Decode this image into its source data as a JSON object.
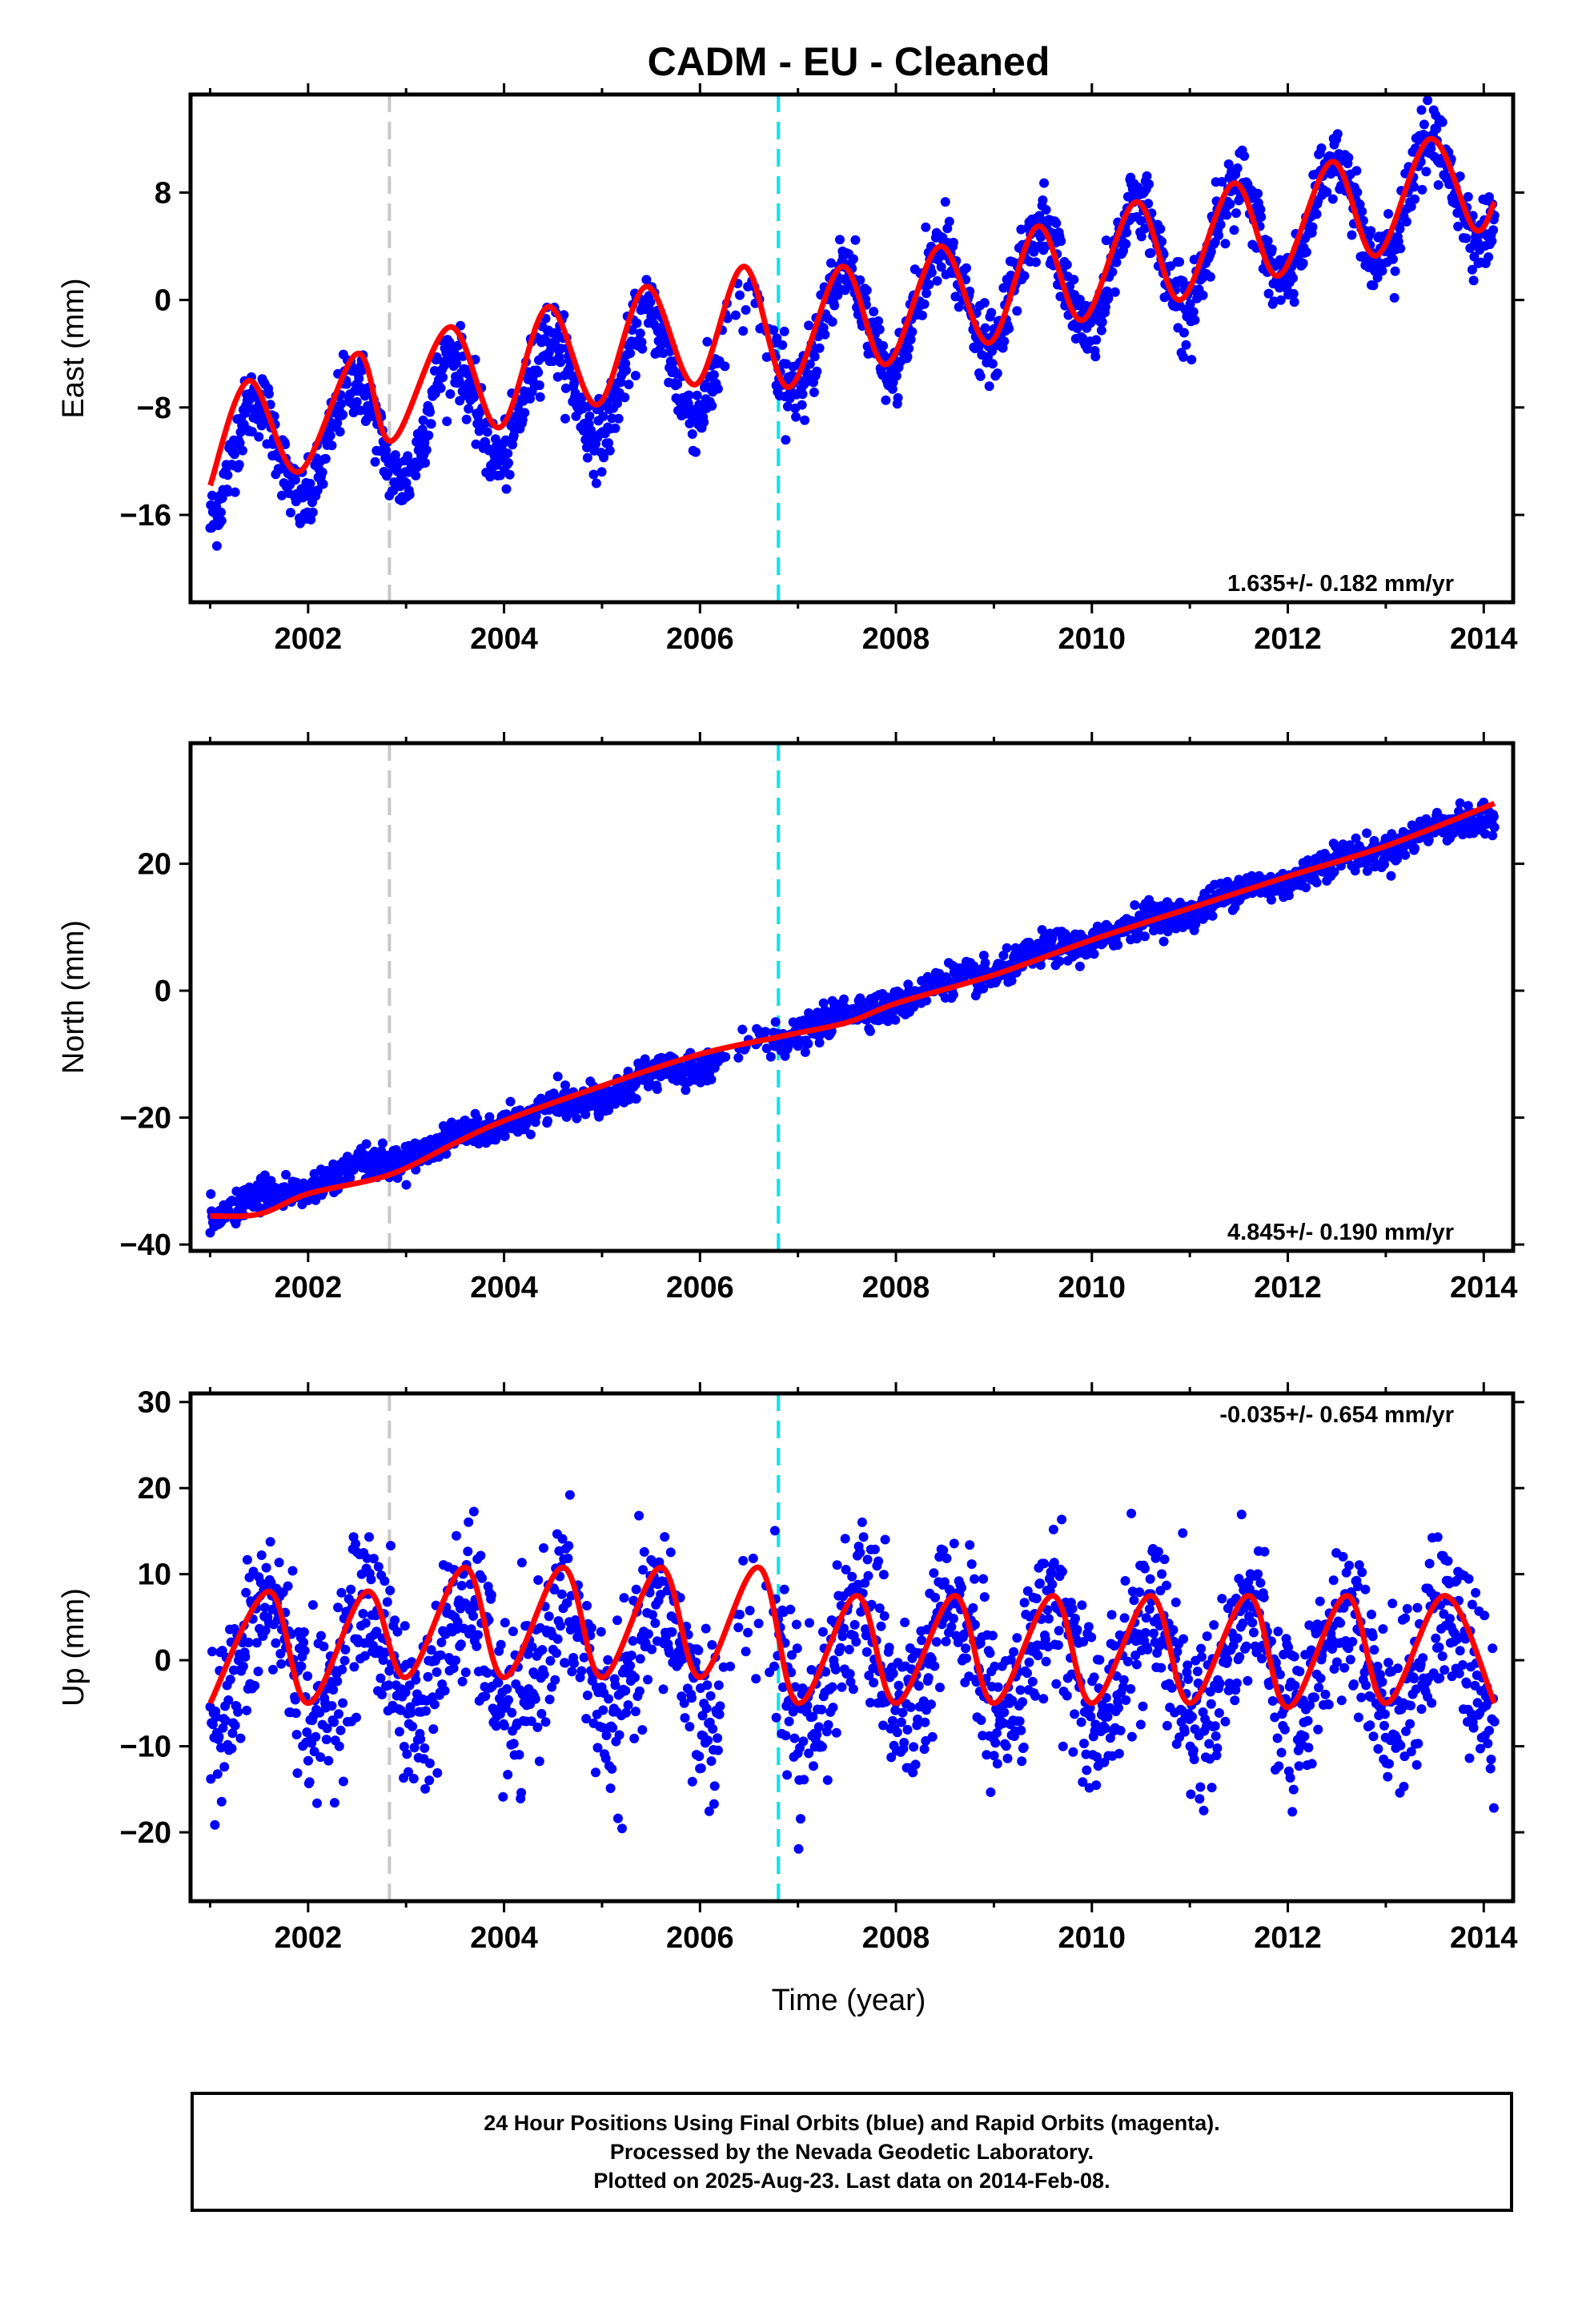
{
  "chart_data": {
    "title": "CADM  - EU - Cleaned",
    "type": "scatter",
    "xlabel": "Time (year)",
    "xlim": [
      2000.8,
      2014.3
    ],
    "x_ticks": [
      "2002",
      "2004",
      "2006",
      "2008",
      "2010",
      "2012",
      "2014"
    ],
    "vertical_lines": [
      {
        "x": 2002.83,
        "color": "#c8c8c8",
        "style": "dashed"
      },
      {
        "x": 2006.8,
        "color": "#00e5ee",
        "style": "dashed"
      }
    ],
    "colors": {
      "observations": "#0000ff",
      "model_fit": "#ff0000",
      "frame": "#000000"
    },
    "panels": [
      {
        "id": "east",
        "ylabel": "East (mm)",
        "ylim": [
          -22.5,
          15.3
        ],
        "y_ticks": [
          8,
          0,
          -8,
          -16
        ],
        "y_tick_labels": [
          "8",
          "0",
          "−8",
          "−16"
        ],
        "rate_label": "1.635+/- 0.182 mm/yr",
        "rate_position": "bottom-right",
        "series": [
          {
            "kind": "observations",
            "x_range": [
              2001.0,
              2014.11
            ],
            "trend_start": -12.5,
            "rate": 1.635,
            "seasonal_amplitude": 4.2,
            "seasonal_phase_year": 0.46,
            "noise": 1.3
          },
          {
            "kind": "model_fit",
            "x": [
              2001.0,
              2001.4,
              2001.9,
              2002.5,
              2002.85,
              2003.45,
              2003.95,
              2004.45,
              2004.95,
              2005.45,
              2005.95,
              2006.45,
              2006.9,
              2007.45,
              2007.9,
              2008.45,
              2008.95,
              2009.45,
              2009.9,
              2010.45,
              2010.9,
              2011.45,
              2011.9,
              2012.45,
              2012.9,
              2013.45,
              2013.9,
              2014.11
            ],
            "y": [
              -13.8,
              -6.0,
              -12.8,
              -4.0,
              -10.5,
              -2.0,
              -9.5,
              -0.5,
              -7.8,
              1.0,
              -6.3,
              2.5,
              -6.5,
              2.5,
              -4.8,
              4.0,
              -3.2,
              5.5,
              -1.5,
              7.3,
              0.0,
              8.7,
              1.8,
              10.3,
              3.3,
              12.0,
              5.3,
              7.3
            ]
          }
        ]
      },
      {
        "id": "north",
        "ylabel": "North (mm)",
        "ylim": [
          -41,
          39
        ],
        "y_ticks": [
          20,
          0,
          -20,
          -40
        ],
        "y_tick_labels": [
          "20",
          "0",
          "−20",
          "−40"
        ],
        "rate_label": "4.845+/- 0.190 mm/yr",
        "rate_position": "bottom-right",
        "series": [
          {
            "kind": "observations",
            "x_range": [
              2001.0,
              2014.11
            ],
            "trend_start": -35.5,
            "rate": 4.845,
            "seasonal_amplitude": 0.8,
            "seasonal_phase_year": 0.5,
            "noise": 1.2
          },
          {
            "kind": "model_fit",
            "x": [
              2001.0,
              2001.5,
              2002.0,
              2002.83,
              2003.5,
              2004.0,
              2005.0,
              2006.0,
              2006.8,
              2007.5,
              2008.0,
              2009.0,
              2010.0,
              2011.0,
              2012.0,
              2013.0,
              2014.11
            ],
            "y": [
              -35.5,
              -35.2,
              -32.0,
              -29.0,
              -24.0,
              -20.5,
              -15.0,
              -10.0,
              -7.3,
              -5.0,
              -2.0,
              2.5,
              8.0,
              13.0,
              18.0,
              22.8,
              29.5
            ]
          }
        ]
      },
      {
        "id": "up",
        "ylabel": "Up (mm)",
        "ylim": [
          -28,
          31
        ],
        "y_ticks": [
          30,
          20,
          10,
          0,
          -10,
          -20
        ],
        "y_tick_labels": [
          "30",
          "20",
          "10",
          "0",
          "−10",
          "−20"
        ],
        "rate_label": "-0.035+/- 0.654 mm/yr",
        "rate_position": "top-right",
        "series": [
          {
            "kind": "observations",
            "x_range": [
              2001.0,
              2014.11
            ],
            "trend_start": 0.0,
            "rate": -0.035,
            "seasonal_amplitude": 6.5,
            "seasonal_phase_year": 0.6,
            "noise": 4.8
          },
          {
            "kind": "model_fit",
            "x": [
              2001.0,
              2001.6,
              2002.0,
              2002.6,
              2003.0,
              2003.6,
              2004.0,
              2004.6,
              2005.0,
              2005.6,
              2006.0,
              2006.6,
              2007.0,
              2007.6,
              2008.0,
              2008.6,
              2009.0,
              2009.6,
              2010.0,
              2010.6,
              2011.0,
              2011.6,
              2012.0,
              2012.6,
              2013.0,
              2013.6,
              2014.11
            ],
            "y": [
              -5.0,
              8.0,
              -5.0,
              8.0,
              -2.0,
              10.8,
              -2.0,
              10.8,
              -2.0,
              10.8,
              -2.0,
              10.8,
              -5.0,
              7.5,
              -5.0,
              7.5,
              -5.0,
              7.5,
              -5.0,
              7.5,
              -5.0,
              7.5,
              -5.5,
              7.5,
              -5.0,
              7.5,
              -5.0
            ]
          }
        ]
      }
    ]
  },
  "footer": {
    "line1": "24 Hour Positions Using Final Orbits (blue) and Rapid Orbits (magenta).",
    "line2": "Processed by the Nevada Geodetic Laboratory.",
    "line3": "Plotted on 2025-Aug-23. Last data on 2014-Feb-08."
  }
}
